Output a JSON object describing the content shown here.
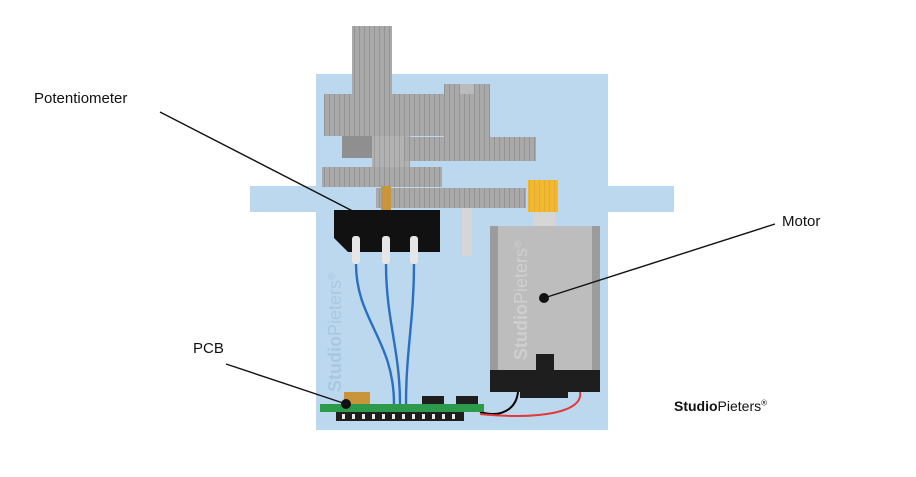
{
  "labels": {
    "potentiometer": "Potentiometer",
    "motor": "Motor",
    "pcb": "PCB"
  },
  "watermark": {
    "bold": "Studio",
    "regular": "Pieters",
    "mark": "®"
  },
  "brand": {
    "bold": "Studio",
    "regular": "Pieters",
    "mark": "®"
  },
  "colors": {
    "housing": "#bcd8ee",
    "gear_light": "#a9a9a9",
    "gear_dark": "#8f8f8f",
    "shaft": "#d6d6d6",
    "brass": "#c9953a",
    "motor_pinion": "#f2b830",
    "pot_body": "#111111",
    "wire": "#2a6fc4",
    "pcb": "#2c9a4a",
    "motor_can": "#bdbdbd",
    "motor_end": "#1e1e1e",
    "lead_red": "#e23a3a",
    "lead_black": "#000000",
    "watermark": "#a9c7e0"
  }
}
